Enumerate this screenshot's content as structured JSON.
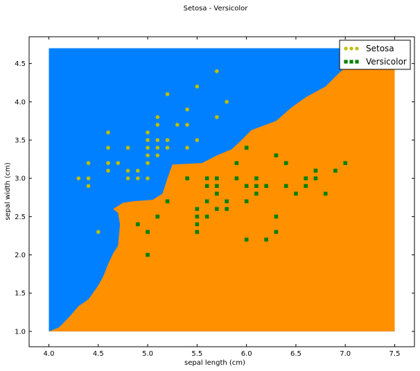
{
  "chart_data": {
    "type": "scatter",
    "title": "Setosa - Versicolor",
    "xlabel": "sepal length (cm)",
    "ylabel": "sepal width (cm)",
    "xlim": [
      3.8,
      7.7
    ],
    "ylim": [
      0.8,
      4.85
    ],
    "xticks": [
      4.0,
      4.5,
      5.0,
      5.5,
      6.0,
      6.5,
      7.0,
      7.5
    ],
    "yticks": [
      1.0,
      1.5,
      2.0,
      2.5,
      3.0,
      3.5,
      4.0,
      4.5
    ],
    "grid": false,
    "legend": "top-right",
    "decision_regions": {
      "x_range": [
        4.0,
        7.5
      ],
      "y_range": [
        1.0,
        4.7
      ],
      "colors": {
        "setosa": "#0080ff",
        "versicolor": "#ff9000"
      },
      "boundary": [
        [
          4.0,
          1.0
        ],
        [
          4.1,
          1.05
        ],
        [
          4.2,
          1.18
        ],
        [
          4.3,
          1.33
        ],
        [
          4.4,
          1.42
        ],
        [
          4.5,
          1.6
        ],
        [
          4.55,
          1.72
        ],
        [
          4.6,
          1.88
        ],
        [
          4.65,
          2.02
        ],
        [
          4.7,
          2.12
        ],
        [
          4.72,
          2.4
        ],
        [
          4.7,
          2.55
        ],
        [
          4.65,
          2.6
        ],
        [
          4.75,
          2.68
        ],
        [
          4.85,
          2.7
        ],
        [
          5.05,
          2.72
        ],
        [
          5.15,
          2.8
        ],
        [
          5.2,
          3.0
        ],
        [
          5.25,
          3.18
        ],
        [
          5.55,
          3.2
        ],
        [
          5.7,
          3.3
        ],
        [
          5.85,
          3.38
        ],
        [
          5.95,
          3.5
        ],
        [
          6.05,
          3.63
        ],
        [
          6.3,
          3.75
        ],
        [
          6.45,
          3.92
        ],
        [
          6.6,
          4.06
        ],
        [
          6.8,
          4.2
        ],
        [
          6.9,
          4.33
        ],
        [
          7.0,
          4.45
        ],
        [
          7.1,
          4.55
        ],
        [
          7.25,
          4.7
        ]
      ]
    },
    "series": [
      {
        "name": "Setosa",
        "color": "#bfbf00",
        "marker": "circle",
        "points": [
          [
            4.3,
            3.0
          ],
          [
            4.4,
            3.2
          ],
          [
            4.4,
            3.0
          ],
          [
            4.4,
            2.9
          ],
          [
            4.5,
            2.3
          ],
          [
            4.6,
            3.6
          ],
          [
            4.6,
            3.4
          ],
          [
            4.6,
            3.2
          ],
          [
            4.6,
            3.1
          ],
          [
            4.7,
            3.2
          ],
          [
            4.8,
            3.4
          ],
          [
            4.8,
            3.1
          ],
          [
            4.8,
            3.0
          ],
          [
            4.9,
            3.1
          ],
          [
            4.9,
            3.0
          ],
          [
            5.0,
            3.6
          ],
          [
            5.0,
            3.5
          ],
          [
            5.0,
            3.4
          ],
          [
            5.0,
            3.3
          ],
          [
            5.0,
            3.2
          ],
          [
            5.0,
            3.0
          ],
          [
            5.1,
            3.8
          ],
          [
            5.1,
            3.7
          ],
          [
            5.1,
            3.5
          ],
          [
            5.1,
            3.4
          ],
          [
            5.1,
            3.3
          ],
          [
            5.2,
            4.1
          ],
          [
            5.2,
            3.5
          ],
          [
            5.2,
            3.4
          ],
          [
            5.3,
            3.7
          ],
          [
            5.4,
            3.9
          ],
          [
            5.4,
            3.7
          ],
          [
            5.4,
            3.4
          ],
          [
            5.5,
            4.2
          ],
          [
            5.5,
            3.5
          ],
          [
            5.7,
            4.4
          ],
          [
            5.7,
            3.8
          ],
          [
            5.8,
            4.0
          ]
        ]
      },
      {
        "name": "Versicolor",
        "color": "#008000",
        "marker": "square",
        "points": [
          [
            4.9,
            2.4
          ],
          [
            5.0,
            2.3
          ],
          [
            5.0,
            2.0
          ],
          [
            5.1,
            2.5
          ],
          [
            5.2,
            2.7
          ],
          [
            5.4,
            3.0
          ],
          [
            5.5,
            2.6
          ],
          [
            5.5,
            2.5
          ],
          [
            5.5,
            2.4
          ],
          [
            5.5,
            2.3
          ],
          [
            5.6,
            3.0
          ],
          [
            5.6,
            2.9
          ],
          [
            5.6,
            2.7
          ],
          [
            5.6,
            2.5
          ],
          [
            5.7,
            3.0
          ],
          [
            5.7,
            2.9
          ],
          [
            5.7,
            2.8
          ],
          [
            5.7,
            2.6
          ],
          [
            5.8,
            2.7
          ],
          [
            5.8,
            2.6
          ],
          [
            5.9,
            3.2
          ],
          [
            5.9,
            3.0
          ],
          [
            6.0,
            3.4
          ],
          [
            6.0,
            2.9
          ],
          [
            6.0,
            2.7
          ],
          [
            6.0,
            2.2
          ],
          [
            6.1,
            3.0
          ],
          [
            6.1,
            2.9
          ],
          [
            6.1,
            2.8
          ],
          [
            6.2,
            2.9
          ],
          [
            6.2,
            2.2
          ],
          [
            6.3,
            3.3
          ],
          [
            6.3,
            2.5
          ],
          [
            6.3,
            2.3
          ],
          [
            6.4,
            3.2
          ],
          [
            6.4,
            2.9
          ],
          [
            6.5,
            2.8
          ],
          [
            6.6,
            3.0
          ],
          [
            6.6,
            2.9
          ],
          [
            6.7,
            3.1
          ],
          [
            6.7,
            3.0
          ],
          [
            6.8,
            2.8
          ],
          [
            6.9,
            3.1
          ],
          [
            7.0,
            3.2
          ]
        ]
      }
    ]
  }
}
